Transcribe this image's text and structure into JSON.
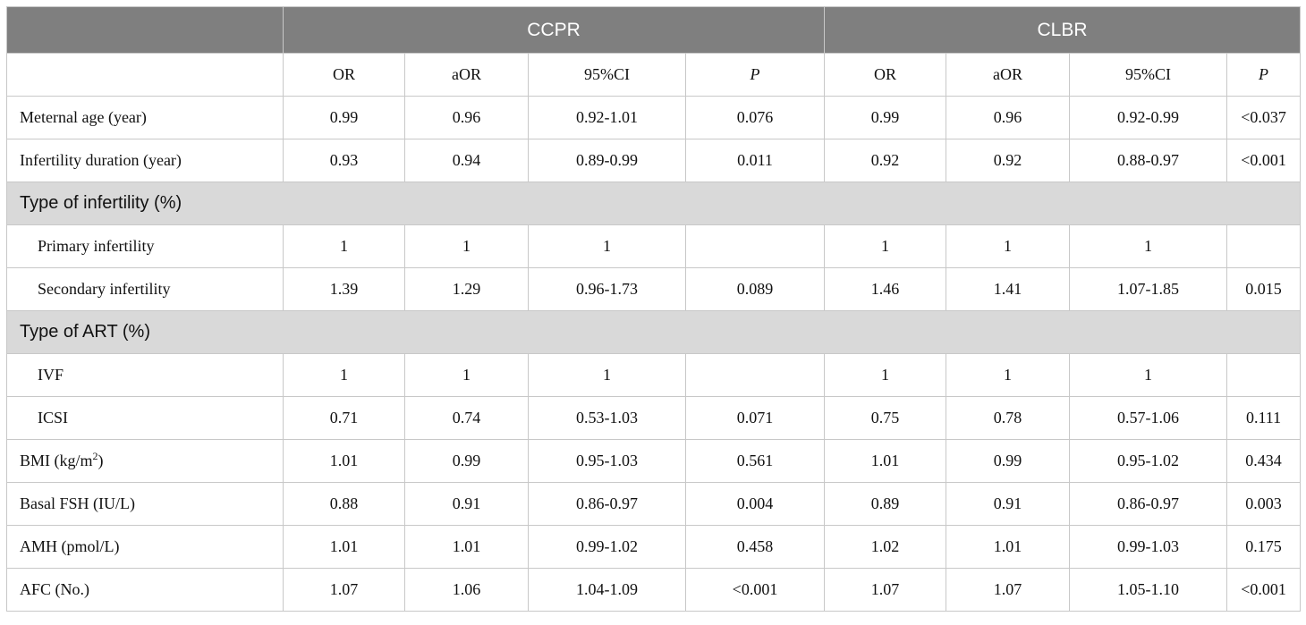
{
  "groups": [
    "CCPR",
    "CLBR"
  ],
  "subheaders": [
    "OR",
    "aOR",
    "95%CI",
    "P",
    "OR",
    "aOR",
    "95%CI",
    "P"
  ],
  "rows": [
    {
      "label": "Meternal age (year)",
      "cells": [
        "0.99",
        "0.96",
        "0.92-1.01",
        "0.076",
        "0.99",
        "0.96",
        "0.92-0.99",
        "<0.037"
      ]
    },
    {
      "label": "Infertility duration (year)",
      "cells": [
        "0.93",
        "0.94",
        "0.89-0.99",
        "0.011",
        "0.92",
        "0.92",
        "0.88-0.97",
        "<0.001"
      ]
    },
    {
      "section": "Type of infertility (%)"
    },
    {
      "label": "Primary infertility",
      "cells": [
        "1",
        "1",
        "1",
        "",
        "1",
        "1",
        "1",
        ""
      ]
    },
    {
      "label": "Secondary infertility",
      "cells": [
        "1.39",
        "1.29",
        "0.96-1.73",
        "0.089",
        "1.46",
        "1.41",
        "1.07-1.85",
        "0.015"
      ]
    },
    {
      "section": "Type of ART (%)"
    },
    {
      "label": "IVF",
      "cells": [
        "1",
        "1",
        "1",
        "",
        "1",
        "1",
        "1",
        ""
      ]
    },
    {
      "label": "ICSI",
      "cells": [
        "0.71",
        "0.74",
        "0.53-1.03",
        "0.071",
        "0.75",
        "0.78",
        "0.57-1.06",
        "0.111"
      ]
    },
    {
      "label": "BMI (kg/m",
      "label_sup": "2",
      "label_after": ")",
      "cells": [
        "1.01",
        "0.99",
        "0.95-1.03",
        "0.561",
        "1.01",
        "0.99",
        "0.95-1.02",
        "0.434"
      ]
    },
    {
      "label": "Basal FSH (IU/L)",
      "cells": [
        "0.88",
        "0.91",
        "0.86-0.97",
        "0.004",
        "0.89",
        "0.91",
        "0.86-0.97",
        "0.003"
      ]
    },
    {
      "label": "AMH (pmol/L)",
      "cells": [
        "1.01",
        "1.01",
        "0.99-1.02",
        "0.458",
        "1.02",
        "1.01",
        "0.99-1.03",
        "0.175"
      ]
    },
    {
      "label": "AFC (No.)",
      "cells": [
        "1.07",
        "1.06",
        "1.04-1.09",
        "<0.001",
        "1.07",
        "1.07",
        "1.05-1.10",
        "<0.001"
      ]
    }
  ]
}
